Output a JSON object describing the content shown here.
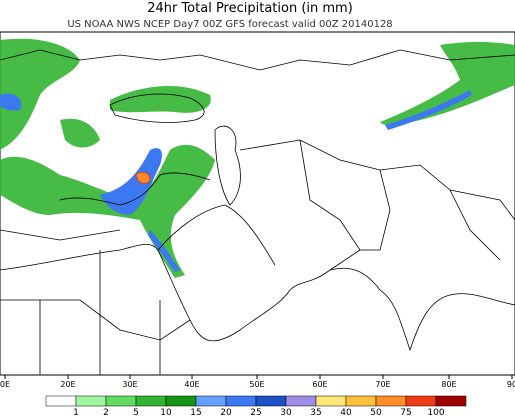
{
  "header": {
    "title": "24hr Total Precipitation (in mm)",
    "subtitle": "US NOAA NWS NCEP Day7 00Z GFS forecast valid 00Z 20140128"
  },
  "map": {
    "lon_labels": [
      "0E",
      "20E",
      "30E",
      "40E",
      "50E",
      "60E",
      "70E",
      "80E",
      "90"
    ]
  },
  "colorbar": {
    "levels": [
      1,
      2,
      5,
      10,
      15,
      20,
      25,
      30,
      35,
      40,
      50,
      75,
      100
    ],
    "colors": [
      "#ffffff",
      "#a0f5a0",
      "#64dc64",
      "#32b432",
      "#149614",
      "#64a0ff",
      "#3c78f0",
      "#1e50c8",
      "#a08ce6",
      "#ffe678",
      "#ffc03c",
      "#ff8c28",
      "#f03c14",
      "#a00000"
    ]
  }
}
